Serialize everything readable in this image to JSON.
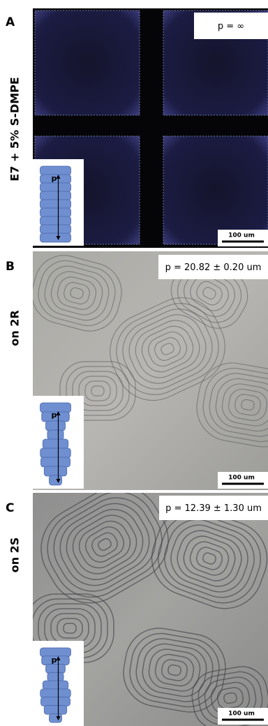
{
  "panels": [
    {
      "letter": "A",
      "side_label": "E7 + 5% S-DMPE",
      "pitch": "p = ∞",
      "inset_label": "p",
      "scale_bar": "100 um"
    },
    {
      "letter": "B",
      "side_label": "on 2R",
      "pitch": "p = 20.82 ± 0.20 um",
      "inset_label": "p",
      "scale_bar": "100 um"
    },
    {
      "letter": "C",
      "side_label": "on 2S",
      "pitch": "p = 12.39 ± 1.30 um",
      "inset_label": "p",
      "scale_bar": "100 um"
    }
  ]
}
